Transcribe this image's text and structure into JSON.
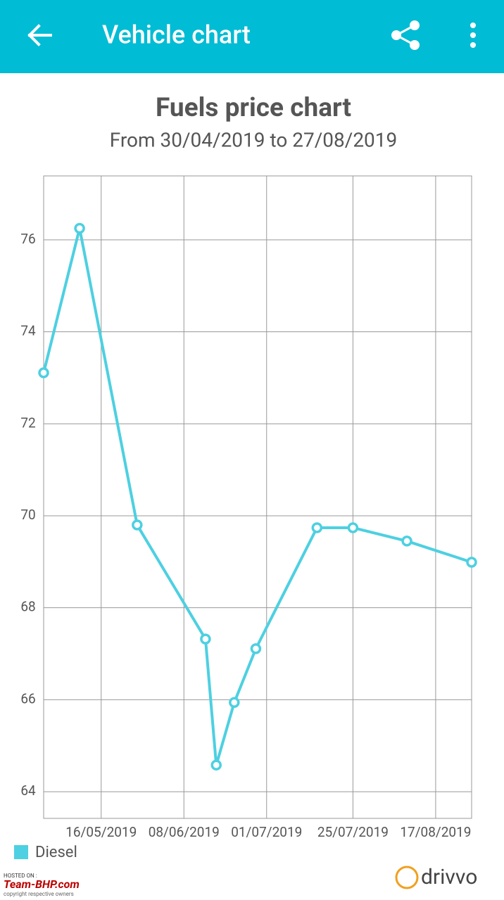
{
  "app_bar": {
    "title": "Vehicle chart"
  },
  "chart_data": {
    "type": "line",
    "title": "Fuels price chart",
    "subtitle": "From 30/04/2019 to 27/08/2019",
    "x": [
      "2019-04-30",
      "2019-05-10",
      "2019-05-26",
      "2019-06-14",
      "2019-06-17",
      "2019-06-22",
      "2019-06-28",
      "2019-07-15",
      "2019-07-25",
      "2019-08-09",
      "2019-08-27"
    ],
    "series": [
      {
        "name": "Diesel",
        "color": "#4dd0e1",
        "values": [
          73.11,
          76.25,
          69.8,
          67.32,
          64.58,
          65.94,
          67.11,
          69.74,
          69.74,
          69.45,
          68.99
        ]
      }
    ],
    "xlim": [
      "2019-04-30",
      "2019-08-27"
    ],
    "xticks": [
      {
        "value": "2019-05-16",
        "label": "16/05/2019"
      },
      {
        "value": "2019-06-08",
        "label": "08/06/2019"
      },
      {
        "value": "2019-07-01",
        "label": "01/07/2019"
      },
      {
        "value": "2019-07-25",
        "label": "25/07/2019"
      },
      {
        "value": "2019-08-17",
        "label": "17/08/2019"
      }
    ],
    "ylim": [
      63.42,
      77.39
    ],
    "yticks": [
      64,
      66,
      68,
      70,
      72,
      74,
      76
    ],
    "grid": true,
    "legend": "bottom-left"
  },
  "footer": {
    "brand": "drivvo"
  },
  "watermark": {
    "hosted": "HOSTED ON :",
    "site": "Team-BHP.com",
    "note": "copyright respective owners"
  }
}
